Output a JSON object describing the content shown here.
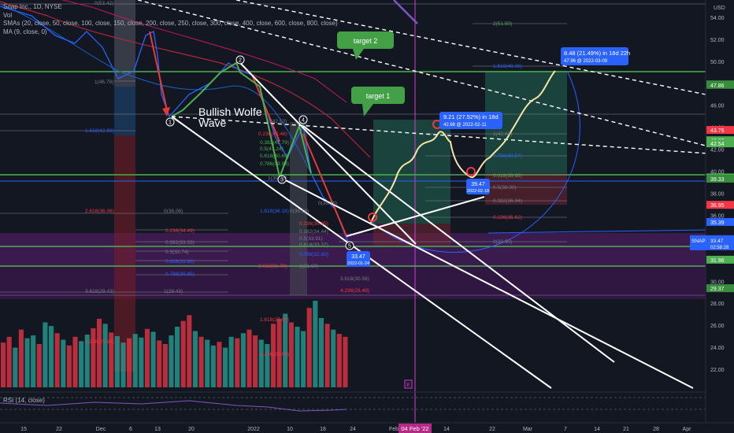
{
  "legend": {
    "title": "Snap Inc., 1D, NYSE",
    "vol": "Vol",
    "smas": "SMAs (20, close, 50, close, 100, close, 150, close, 200, close, 250, close, 300, close, 400, close, 600, close, 800, close)",
    "ma": "MA (9, close, 0)"
  },
  "rsi_label": "RSI (14, close)",
  "currency": "USD",
  "annotations": {
    "bullish_wolfe": "Bullish Wolfe",
    "wave": "Wave",
    "target1": "target 1",
    "target2": "target 2",
    "w1": "1",
    "w2": "2",
    "w3": "3",
    "w4": "4",
    "w5": "5",
    "measure1_line1": "9.21 (27.52%) in 18d",
    "measure1_line2": "42.68 @ 2022-02-11",
    "measure2_line1": "8.48 (21.49%) in 18d 22h",
    "measure2_line2": "47.96 @ 2022-03-09",
    "low1_price": "33.47",
    "low1_date": "2022-01-24",
    "low2_price": "39.47",
    "low2_date": "2022-02-18",
    "event_marker": "E",
    "snap_tag": "SNAP",
    "snap_time": "02:58:28"
  },
  "fib_labels": [
    "0(53.42)",
    "1(46.79)",
    "1.618(42.69)",
    "2.618(36.06)",
    "3.618(29.43)",
    "4.236(25.34)",
    "0(36.06)",
    "0.236(34.49)",
    "0.382(33.53)",
    "0.5(32.74)",
    "0.618(31.96)",
    "0.786(30.85)",
    "1(29.43)",
    "0(42.53)",
    "0.236(42.46)",
    "0.382(41.79)",
    "0.5(41.24)",
    "0.618(40.69)",
    "0.786(39.93)",
    "1(39.25)",
    "1.618(36.18)",
    "0(36.18)",
    "1.618(27.09)",
    "4.236(28.00)",
    "0(36.78)",
    "0.236(35.95)",
    "0.382(34.44)",
    "0.5(33.91)",
    "0.618(33.37)",
    "0.786(32.60)",
    "1(31.60)",
    "2.618(31.00)",
    "3.618(30.56)",
    "4.236(29.49)",
    "2(51.50)",
    "1.618(48.06)",
    "1(42.68)",
    "0.786(40.57)",
    "0.618(39.66)",
    "0.5(38.00)",
    "0.382(36.94)",
    "0.236(35.62)",
    "0(33.50)"
  ],
  "chart_data": {
    "type": "line",
    "title": "Snap Inc., 1D, NYSE",
    "ylabel": "USD",
    "ylim": [
      20.5,
      55
    ],
    "y_ticks": [
      22.0,
      24.0,
      26.0,
      28.0,
      30.0,
      32.0,
      34.0,
      36.0,
      38.0,
      40.0,
      42.0,
      44.0,
      46.0,
      48.0,
      50.0,
      52.0,
      54.0
    ],
    "x_ticks": [
      "15",
      "22",
      "Dec",
      "6",
      "13",
      "20",
      "2022",
      "10",
      "18",
      "24",
      "Feb",
      "14",
      "22",
      "Mar",
      "7",
      "14",
      "21",
      "28",
      "Apr"
    ],
    "current_date_label": "04 Feb '22",
    "price_tags": [
      {
        "value": "47.89",
        "color": "#4caf50"
      },
      {
        "value": "47.86",
        "color": "#388e3c"
      },
      {
        "value": "43.76",
        "color": "#f23645"
      },
      {
        "value": "42.82",
        "color": "#4caf50"
      },
      {
        "value": "42.54",
        "color": "#4caf50"
      },
      {
        "value": "39.44",
        "color": "#4caf50"
      },
      {
        "value": "39.36",
        "color": "#4caf50"
      },
      {
        "value": "39.33",
        "color": "#388e3c"
      },
      {
        "value": "36.95",
        "color": "#f23645"
      },
      {
        "value": "35.39",
        "color": "#2962ff"
      },
      {
        "value": "33.54",
        "color": "#f23645"
      },
      {
        "value": "33.51",
        "color": "#388e3c"
      },
      {
        "value": "33.47",
        "color": "#2962ff"
      },
      {
        "value": "31.96",
        "color": "#4caf50"
      },
      {
        "value": "29.37",
        "color": "#388e3c"
      }
    ],
    "wave_points": [
      {
        "label": "1",
        "date": "2021-12-10",
        "price": 42.9
      },
      {
        "label": "2",
        "date": "2021-12-29",
        "price": 49.1
      },
      {
        "label": "3",
        "date": "2022-01-10",
        "price": 39.8
      },
      {
        "label": "4",
        "date": "2022-01-12",
        "price": 43.2
      },
      {
        "label": "5",
        "date": "2022-01-24",
        "price": 33.47
      }
    ],
    "projection": [
      {
        "date": "2022-01-28",
        "price": 35.5
      },
      {
        "date": "2022-02-11",
        "price": 42.68
      },
      {
        "date": "2022-02-18",
        "price": 39.47
      },
      {
        "date": "2022-03-09",
        "price": 47.96
      }
    ],
    "volume": [
      62,
      70,
      55,
      80,
      68,
      72,
      60,
      90,
      85,
      75,
      66,
      58,
      70,
      64,
      73,
      82,
      95,
      88,
      76,
      71,
      62,
      68,
      74,
      69,
      81,
      77,
      65,
      60,
      72,
      84,
      92,
      100,
      78,
      70,
      66,
      58,
      63,
      55,
      70,
      68,
      75,
      80,
      72,
      66,
      60,
      88,
      95,
      102,
      90,
      84,
      78,
      110,
      120,
      96,
      88,
      80,
      74,
      70
    ]
  }
}
